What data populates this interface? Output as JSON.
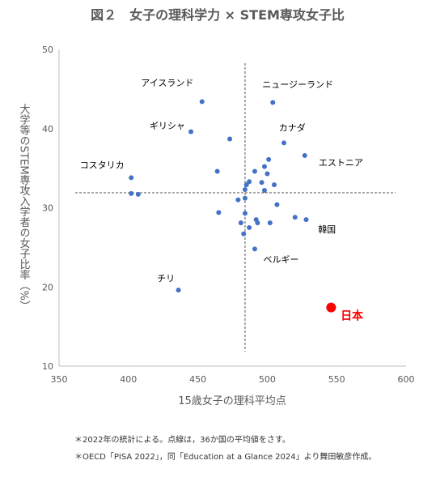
{
  "chart_data": {
    "type": "scatter",
    "title": "図２　女子の理科学力 × STEM専攻女子比",
    "xlabel": "15歳女子の理科平均点",
    "ylabel": "大学等のSTEM専攻入学者の女子比率（%）",
    "xlim": [
      350,
      600
    ],
    "ylim": [
      10,
      50
    ],
    "xticks": [
      "350",
      "400",
      "450",
      "500",
      "550",
      "600"
    ],
    "yticks": [
      "10",
      "20",
      "30",
      "40",
      "50"
    ],
    "grid": false,
    "reference_lines": {
      "x": 484,
      "y": 31.9
    },
    "series": [
      {
        "color": "#4472C4",
        "points": [
          [
            453,
            43.4
          ],
          [
            504,
            43.3
          ],
          [
            445,
            39.6
          ],
          [
            473,
            38.7
          ],
          [
            512,
            38.2
          ],
          [
            527,
            36.6
          ],
          [
            501,
            36.1
          ],
          [
            498,
            35.2
          ],
          [
            491,
            34.6
          ],
          [
            500,
            34.3
          ],
          [
            464,
            34.6
          ],
          [
            402,
            33.8
          ],
          [
            485,
            32.9
          ],
          [
            487,
            33.3
          ],
          [
            496,
            33.2
          ],
          [
            505,
            32.9
          ],
          [
            484,
            32.3
          ],
          [
            498,
            32.2
          ],
          [
            402,
            31.8
          ],
          [
            407,
            31.7
          ],
          [
            484,
            31.2
          ],
          [
            479,
            31.0
          ],
          [
            507,
            30.4
          ],
          [
            465,
            29.4
          ],
          [
            484,
            29.3
          ],
          [
            520,
            28.8
          ],
          [
            528,
            28.5
          ],
          [
            492,
            28.5
          ],
          [
            493,
            28.1
          ],
          [
            481,
            28.1
          ],
          [
            502,
            28.1
          ],
          [
            487,
            27.5
          ],
          [
            483,
            26.7
          ],
          [
            491,
            24.8
          ],
          [
            436,
            19.6
          ]
        ]
      },
      {
        "color": "#FF0000",
        "points": [
          [
            546,
            17.4
          ]
        ]
      }
    ],
    "annotations": [
      {
        "text": "アイスランド",
        "x": 428,
        "y": 45.4,
        "color": "#000000"
      },
      {
        "text": "ニュージーランド",
        "x": 522,
        "y": 45.2,
        "color": "#000000"
      },
      {
        "text": "ギリシャ",
        "x": 428,
        "y": 40.0,
        "color": "#000000"
      },
      {
        "text": "カナダ",
        "x": 518,
        "y": 39.7,
        "color": "#000000"
      },
      {
        "text": "エストニア",
        "x": 553,
        "y": 35.3,
        "color": "#000000"
      },
      {
        "text": "コスタリカ",
        "x": 381,
        "y": 35.0,
        "color": "#000000"
      },
      {
        "text": "韓国",
        "x": 543,
        "y": 26.9,
        "color": "#000000"
      },
      {
        "text": "ベルギー",
        "x": 510,
        "y": 23.1,
        "color": "#000000"
      },
      {
        "text": "チリ",
        "x": 427,
        "y": 20.7,
        "color": "#000000"
      },
      {
        "text": "日本",
        "x": 561,
        "y": 15.9,
        "color": "#FF0000"
      }
    ]
  },
  "notes": {
    "line1": "＊2022年の統計による。点線は，36か国の平均値をさす。",
    "line2": "＊OECD「PISA 2022」，同「Education at a Glance 2024」より舞田敏彦作成。"
  }
}
